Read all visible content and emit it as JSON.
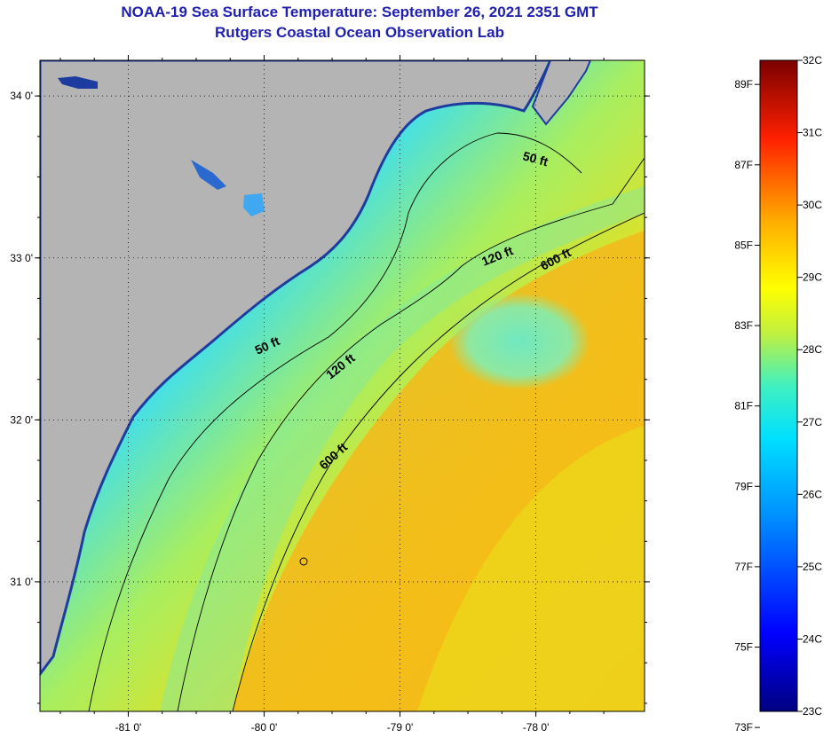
{
  "titles": {
    "line1": "NOAA-19 Sea Surface Temperature:  September 26, 2021 2351 GMT",
    "line2": "Rutgers Coastal Ocean Observation Lab"
  },
  "map": {
    "lon_range": [
      -81.65,
      -77.2
    ],
    "lat_range": [
      30.2,
      34.22
    ],
    "lon_ticks": [
      {
        "value": -81,
        "label": "-81 0'"
      },
      {
        "value": -80,
        "label": "-80 0'"
      },
      {
        "value": -79,
        "label": "-79 0'"
      },
      {
        "value": -78,
        "label": "-78 0'"
      }
    ],
    "lat_ticks": [
      {
        "value": 34,
        "label": "34 0'"
      },
      {
        "value": 33,
        "label": "33 0'"
      },
      {
        "value": 32,
        "label": "32 0'"
      },
      {
        "value": 31,
        "label": "31 0'"
      }
    ],
    "contours": [
      {
        "name": "depth-50ft",
        "label": "50 ft",
        "label2": "50 ft"
      },
      {
        "name": "depth-120ft",
        "label": "120 ft",
        "label2": "120 ft"
      },
      {
        "name": "depth-600ft",
        "label": "600 ft",
        "label2": "600 ft"
      }
    ],
    "colors": {
      "land": "#b4b4b4",
      "land_edge": "#1e3ca0",
      "cold_water": "#38c8ff",
      "mid_water": "#8cef8c",
      "warm_water": "#f0dd10",
      "gulfstream": "#f5b414"
    }
  },
  "colorbar": {
    "fahrenheit": [
      "89F",
      "87F",
      "85F",
      "83F",
      "81F",
      "79F",
      "77F",
      "75F",
      "73F"
    ],
    "celsius": [
      "32C",
      "31C",
      "30C",
      "29C",
      "28C",
      "27C",
      "26C",
      "25C",
      "24C",
      "23C"
    ]
  }
}
